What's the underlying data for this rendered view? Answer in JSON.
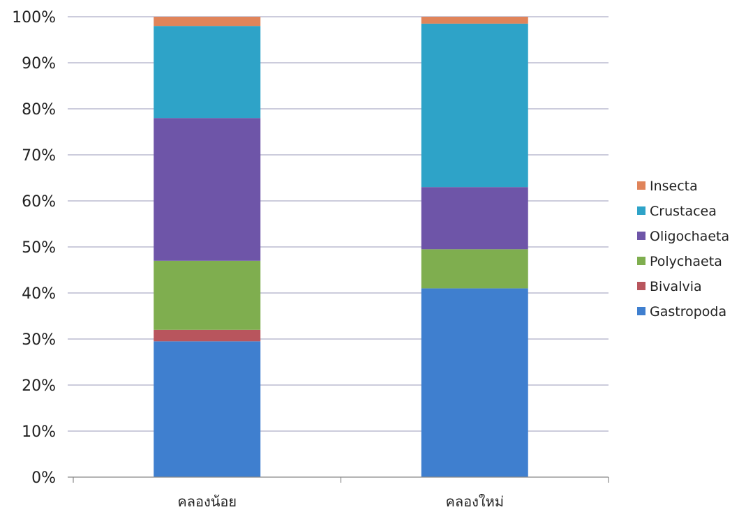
{
  "chart_data": {
    "type": "bar",
    "stacked": "percent",
    "categories": [
      "คลองน้อย",
      "คลองใหม่"
    ],
    "series": [
      {
        "name": "Gastropoda",
        "color": "#3f7fcf",
        "values": [
          29.5,
          41.0
        ]
      },
      {
        "name": "Bivalvia",
        "color": "#b8555d",
        "values": [
          2.5,
          0.0
        ]
      },
      {
        "name": "Polychaeta",
        "color": "#7fae4f",
        "values": [
          15.0,
          8.5
        ]
      },
      {
        "name": "Oligochaeta",
        "color": "#6e55a8",
        "values": [
          31.0,
          13.5
        ]
      },
      {
        "name": "Crustacea",
        "color": "#2ea3c8",
        "values": [
          20.0,
          35.5
        ]
      },
      {
        "name": "Insecta",
        "color": "#e0845a",
        "values": [
          2.0,
          1.5
        ]
      }
    ],
    "y_ticks": [
      "0%",
      "10%",
      "20%",
      "30%",
      "40%",
      "50%",
      "60%",
      "70%",
      "80%",
      "90%",
      "100%"
    ],
    "ylim": [
      0,
      100
    ],
    "grid": true,
    "legend_position": "right"
  }
}
